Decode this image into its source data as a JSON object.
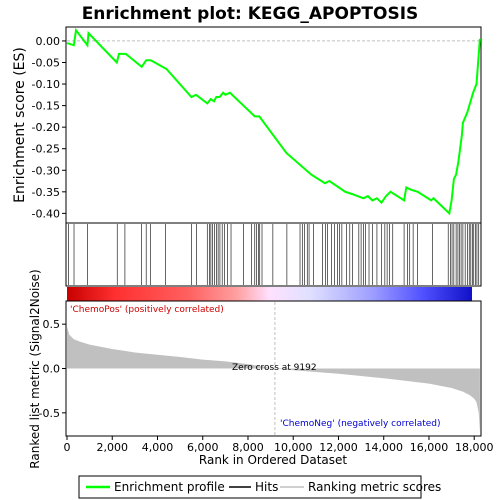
{
  "chart_data": {
    "type": "line",
    "title": "Enrichment plot: KEGG_APOPTOSIS",
    "top_panel": {
      "ylabel": "Enrichment score (ES)",
      "ylim": [
        -0.42,
        0.03
      ],
      "yticks": [
        0.0,
        -0.05,
        -0.1,
        -0.15,
        -0.2,
        -0.25,
        -0.3,
        -0.35,
        -0.4
      ],
      "ytick_labels": [
        "0.00",
        "-0.05",
        "-0.10",
        "-0.15",
        "-0.20",
        "-0.25",
        "-0.30",
        "-0.35",
        "-0.40"
      ],
      "series": [
        {
          "name": "Enrichment profile",
          "color": "#00ff00",
          "x": [
            0,
            300,
            400,
            900,
            950,
            2200,
            2300,
            2600,
            3300,
            3500,
            3700,
            4400,
            5500,
            5700,
            6200,
            6350,
            6500,
            6600,
            6750,
            6900,
            7000,
            7200,
            8200,
            8300,
            8500,
            9700,
            10800,
            11400,
            11600,
            12300,
            12600,
            13100,
            13300,
            13500,
            13700,
            13900,
            14100,
            14300,
            14900,
            15000,
            15200,
            15500,
            16100,
            16200,
            16900,
            17000,
            17100,
            17200,
            17300,
            17450,
            17500,
            17700,
            17950,
            18100,
            18250
          ],
          "y": [
            -0.005,
            -0.01,
            0.025,
            -0.01,
            0.018,
            -0.05,
            -0.03,
            -0.03,
            -0.06,
            -0.045,
            -0.045,
            -0.065,
            -0.13,
            -0.125,
            -0.145,
            -0.135,
            -0.14,
            -0.13,
            -0.13,
            -0.12,
            -0.125,
            -0.12,
            -0.17,
            -0.175,
            -0.175,
            -0.26,
            -0.31,
            -0.33,
            -0.325,
            -0.35,
            -0.355,
            -0.365,
            -0.36,
            -0.37,
            -0.365,
            -0.375,
            -0.36,
            -0.35,
            -0.37,
            -0.34,
            -0.345,
            -0.35,
            -0.37,
            -0.365,
            -0.4,
            -0.37,
            -0.32,
            -0.31,
            -0.28,
            -0.22,
            -0.19,
            -0.165,
            -0.12,
            -0.1,
            0.005
          ]
        }
      ]
    },
    "hits": [
      60,
      310,
      900,
      2220,
      2560,
      3300,
      3500,
      3700,
      4350,
      5500,
      5720,
      6200,
      6300,
      6360,
      6440,
      6520,
      6600,
      6680,
      6760,
      6860,
      6960,
      7100,
      7250,
      7800,
      8150,
      8300,
      8380,
      8460,
      8520,
      8620,
      9100,
      9720,
      10300,
      10400,
      10500,
      10620,
      10700,
      10900,
      11300,
      11420,
      11520,
      11700,
      11820,
      11950,
      12050,
      12150,
      12350,
      12500,
      12620,
      12900,
      13000,
      13100,
      13200,
      13350,
      13500,
      13700,
      13900,
      14050,
      14150,
      14250,
      14400,
      14900,
      15050,
      15150,
      15300,
      15500,
      16150,
      16850,
      16950,
      17020,
      17100,
      17200,
      17280,
      17350,
      17420,
      17500,
      17600,
      17700,
      17780,
      17850,
      17920,
      17980,
      18050,
      18120,
      18200
    ],
    "bottom_panel": {
      "ylabel": "Ranked list metric (Signal2Noise)",
      "xlabel": "Rank in Ordered Dataset",
      "ylim": [
        -0.75,
        0.75
      ],
      "yticks": [
        0.5,
        0.0,
        -0.5
      ],
      "ytick_labels": [
        "0.5",
        "0.0",
        "-0.5"
      ],
      "series": [
        {
          "name": "Ranking metric scores",
          "color": "#c0c0c0",
          "x": [
            0,
            100,
            300,
            600,
            1000,
            2000,
            3000,
            4000,
            5000,
            6000,
            7000,
            8000,
            9192,
            10000,
            11000,
            12000,
            13000,
            14000,
            15000,
            16000,
            17000,
            17500,
            17800,
            18000,
            18100,
            18200,
            18250
          ],
          "y": [
            0.47,
            0.38,
            0.33,
            0.3,
            0.27,
            0.22,
            0.18,
            0.155,
            0.13,
            0.1,
            0.08,
            0.05,
            0.0,
            -0.02,
            -0.04,
            -0.06,
            -0.085,
            -0.11,
            -0.14,
            -0.17,
            -0.22,
            -0.26,
            -0.3,
            -0.34,
            -0.38,
            -0.5,
            -0.72
          ]
        }
      ],
      "zero_cross": 9192
    },
    "xlim": [
      0,
      18300
    ],
    "xticks": [
      0,
      2000,
      4000,
      6000,
      8000,
      10000,
      12000,
      14000,
      16000,
      18000
    ],
    "xtick_labels": [
      "0",
      "2,000",
      "4,000",
      "6,000",
      "8,000",
      "10,000",
      "12,000",
      "14,000",
      "16,000",
      "18,000"
    ],
    "annotations": {
      "pos_label": "'ChemoPos' (positively correlated)",
      "neg_label": "'ChemoNeg' (negatively correlated)",
      "zero_cross_label": "Zero cross at 9192"
    },
    "colors": {
      "profile": "#00ff00",
      "hits": "#000000",
      "metric": "#c0c0c0",
      "pos_text": "#cc0000",
      "neg_text": "#0000cc"
    },
    "legend": {
      "position": "bottom",
      "items": [
        {
          "label": "Enrichment profile",
          "color": "#00ff00"
        },
        {
          "label": "Hits",
          "color": "#000000"
        },
        {
          "label": "Ranking metric scores",
          "color": "#c0c0c0"
        }
      ]
    }
  }
}
